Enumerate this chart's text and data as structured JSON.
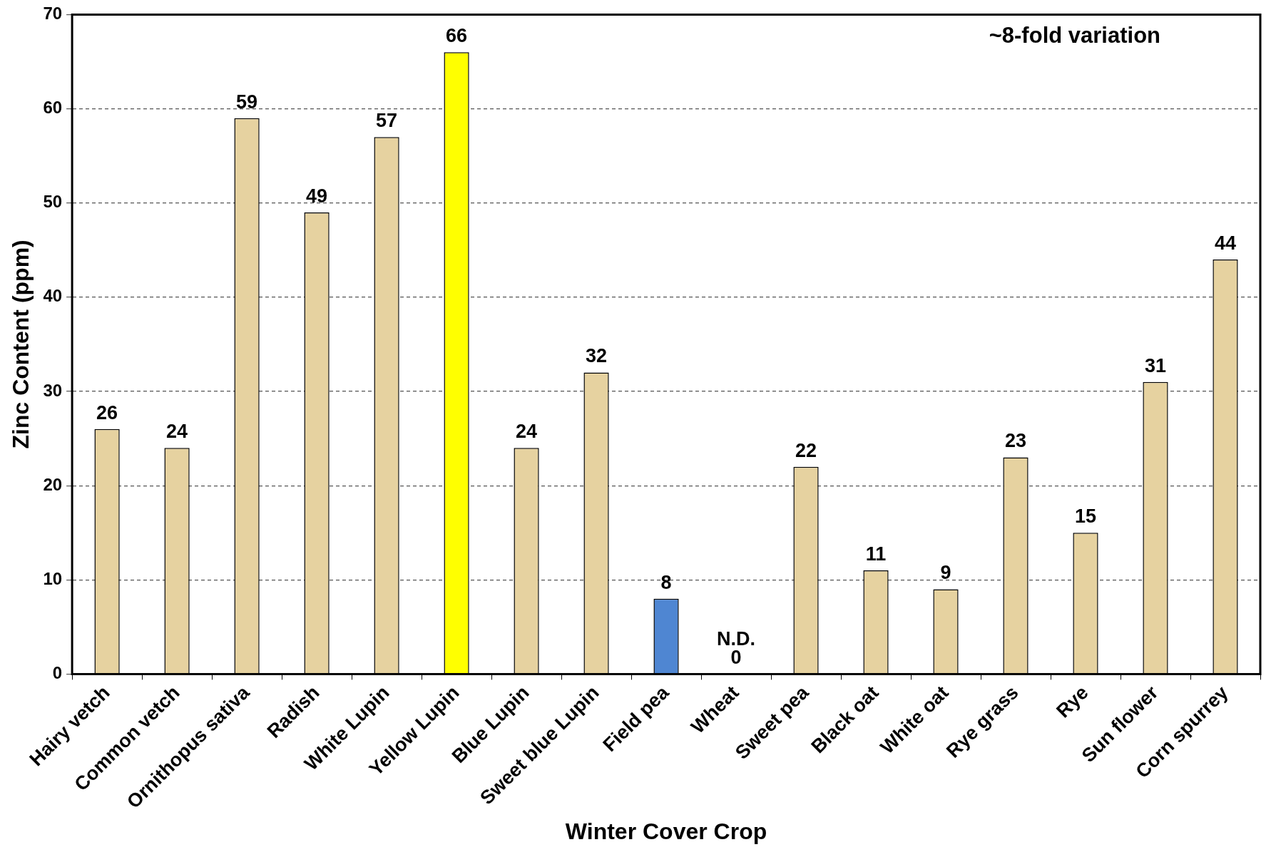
{
  "chart_data": {
    "type": "bar",
    "xlabel": "Winter Cover Crop",
    "ylabel": "Zinc Content (ppm)",
    "categories": [
      "Hairy vetch",
      "Common vetch",
      "Ornithopus sativa",
      "Radish",
      "White Lupin",
      "Yellow Lupin",
      "Blue Lupin",
      "Sweet blue Lupin",
      "Field pea",
      "Wheat",
      "Sweet pea",
      "Black oat",
      "White oat",
      "Rye grass",
      "Rye",
      "Sun flower",
      "Corn spurrey"
    ],
    "values": [
      26,
      24,
      59,
      49,
      57,
      66,
      24,
      32,
      8,
      0,
      22,
      11,
      9,
      23,
      15,
      31,
      44
    ],
    "colors": [
      "#e6d2a0",
      "#e6d2a0",
      "#e6d2a0",
      "#e6d2a0",
      "#e6d2a0",
      "#ffff00",
      "#e6d2a0",
      "#e6d2a0",
      "#4f86d2",
      "#e6d2a0",
      "#e6d2a0",
      "#e6d2a0",
      "#e6d2a0",
      "#e6d2a0",
      "#e6d2a0",
      "#e6d2a0",
      "#e6d2a0"
    ],
    "value_labels": [
      "26",
      "24",
      "59",
      "49",
      "57",
      "66",
      "24",
      "32",
      "8",
      "N.D.\n0",
      "22",
      "11",
      "9",
      "23",
      "15",
      "31",
      "44"
    ],
    "ylim": [
      0,
      70
    ],
    "yticks": [
      0,
      10,
      20,
      30,
      40,
      50,
      60,
      70
    ],
    "grid": "y",
    "legend": false,
    "annotations": [
      "~8-fold variation"
    ]
  }
}
